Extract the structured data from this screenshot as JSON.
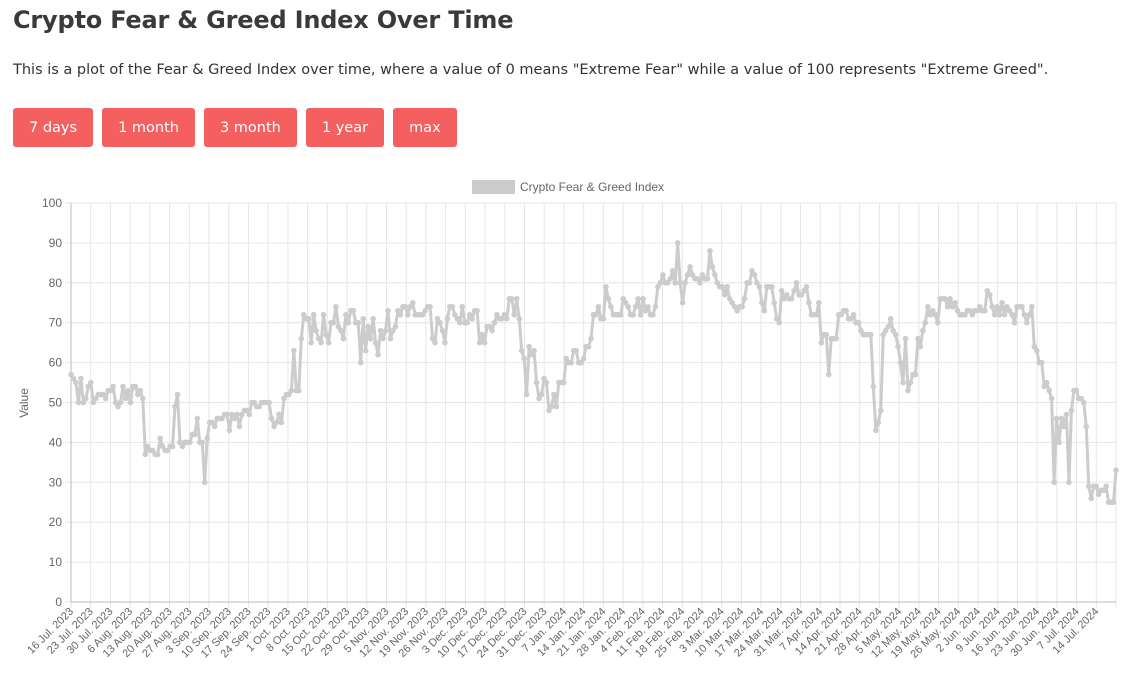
{
  "page": {
    "title": "Crypto Fear & Greed Index Over Time",
    "description": "This is a plot of the Fear & Greed Index over time, where a value of 0 means \"Extreme Fear\" while a value of 100 represents \"Extreme Greed\"."
  },
  "buttons": [
    {
      "label": "7 days"
    },
    {
      "label": "1 month"
    },
    {
      "label": "3 month"
    },
    {
      "label": "1 year"
    },
    {
      "label": "max"
    }
  ],
  "colors": {
    "button": "#f45f5f",
    "line": "#cccccc",
    "grid": "#e6e6e6",
    "axis_text": "#666666"
  },
  "chart_data": {
    "type": "line",
    "title": "",
    "xlabel": "",
    "ylabel": "Value",
    "ylim": [
      0,
      100
    ],
    "yticks": [
      0,
      10,
      20,
      30,
      40,
      50,
      60,
      70,
      80,
      90,
      100
    ],
    "grid": true,
    "legend_position": "top",
    "x_tick_labels": [
      "16 Jul. 2023",
      "23 Jul. 2023",
      "30 Jul. 2023",
      "6 Aug. 2023",
      "13 Aug. 2023",
      "20 Aug. 2023",
      "27 Aug. 2023",
      "3 Sep. 2023",
      "10 Sep. 2023",
      "17 Sep. 2023",
      "24 Sep. 2023",
      "1 Oct. 2023",
      "8 Oct. 2023",
      "15 Oct. 2023",
      "22 Oct. 2023",
      "29 Oct. 2023",
      "5 Nov. 2023",
      "12 Nov. 2023",
      "19 Nov. 2023",
      "26 Nov. 2023",
      "3 Dec. 2023",
      "10 Dec. 2023",
      "17 Dec. 2023",
      "24 Dec. 2023",
      "31 Dec. 2023",
      "7 Jan. 2024",
      "14 Jan. 2024",
      "21 Jan. 2024",
      "28 Jan. 2024",
      "4 Feb. 2024",
      "11 Feb. 2024",
      "18 Feb. 2024",
      "25 Feb. 2024",
      "3 Mar. 2024",
      "10 Mar. 2024",
      "17 Mar. 2024",
      "24 Mar. 2024",
      "31 Mar. 2024",
      "7 Apr. 2024",
      "14 Apr. 2024",
      "21 Apr. 2024",
      "28 Apr. 2024",
      "5 May. 2024",
      "12 May. 2024",
      "19 May. 2024",
      "26 May. 2024",
      "2 Jun. 2024",
      "9 Jun. 2024",
      "16 Jun. 2024",
      "23 Jun. 2024",
      "30 Jun. 2024",
      "7 Jul. 2024",
      "14 Jul. 2024"
    ],
    "series": [
      {
        "name": "Crypto Fear & Greed Index",
        "values": [
          57,
          56,
          55,
          50,
          56,
          50,
          51,
          54,
          55,
          50,
          51,
          52,
          52,
          52,
          51,
          53,
          53,
          54,
          50,
          49,
          50,
          54,
          51,
          53,
          50,
          54,
          54,
          52,
          53,
          51,
          37,
          39,
          38,
          38,
          37,
          37,
          41,
          39,
          38,
          38,
          39,
          39,
          49,
          52,
          40,
          39,
          40,
          40,
          40,
          42,
          42,
          46,
          40,
          40,
          30,
          41,
          45,
          45,
          44,
          46,
          46,
          46,
          47,
          47,
          43,
          47,
          46,
          47,
          44,
          47,
          48,
          48,
          47,
          50,
          50,
          49,
          49,
          50,
          50,
          50,
          50,
          46,
          44,
          45,
          47,
          45,
          51,
          52,
          52,
          53,
          63,
          53,
          53,
          66,
          72,
          71,
          71,
          65,
          72,
          68,
          66,
          65,
          72,
          67,
          65,
          70,
          70,
          74,
          69,
          68,
          66,
          72,
          70,
          73,
          73,
          70,
          70,
          60,
          71,
          63,
          69,
          66,
          71,
          65,
          62,
          68,
          66,
          68,
          73,
          66,
          68,
          69,
          73,
          72,
          74,
          74,
          72,
          74,
          75,
          72,
          72,
          72,
          72,
          73,
          74,
          74,
          66,
          65,
          71,
          70,
          68,
          65,
          71,
          74,
          74,
          72,
          71,
          70,
          74,
          70,
          70,
          72,
          71,
          73,
          73,
          65,
          67,
          65,
          69,
          69,
          68,
          70,
          72,
          71,
          71,
          72,
          71,
          76,
          76,
          72,
          76,
          71,
          63,
          61,
          52,
          64,
          62,
          63,
          55,
          51,
          52,
          56,
          55,
          48,
          49,
          52,
          49,
          55,
          55,
          55,
          61,
          60,
          60,
          63,
          63,
          60,
          60,
          61,
          64,
          64,
          66,
          72,
          72,
          74,
          71,
          71,
          79,
          76,
          74,
          72,
          72,
          72,
          72,
          76,
          75,
          74,
          72,
          72,
          74,
          76,
          72,
          76,
          73,
          74,
          72,
          72,
          74,
          79,
          80,
          82,
          80,
          80,
          81,
          83,
          80,
          90,
          80,
          75,
          80,
          82,
          84,
          82,
          81,
          81,
          80,
          82,
          81,
          81,
          88,
          84,
          82,
          80,
          79,
          79,
          77,
          79,
          76,
          75,
          74,
          73,
          74,
          74,
          76,
          80,
          80,
          83,
          82,
          80,
          79,
          75,
          73,
          79,
          79,
          79,
          75,
          71,
          70,
          78,
          76,
          77,
          76,
          76,
          78,
          80,
          77,
          77,
          78,
          79,
          75,
          72,
          72,
          72,
          75,
          65,
          67,
          67,
          57,
          66,
          66,
          66,
          72,
          72,
          73,
          73,
          71,
          71,
          72,
          70,
          70,
          68,
          67,
          67,
          67,
          67,
          54,
          43,
          45,
          48,
          67,
          68,
          69,
          71,
          68,
          67,
          64,
          60,
          55,
          66,
          53,
          55,
          57,
          57,
          66,
          64,
          68,
          70,
          74,
          72,
          73,
          72,
          70,
          76,
          76,
          76,
          74,
          76,
          74,
          75,
          73,
          72,
          72,
          72,
          73,
          73,
          72,
          73,
          73,
          74,
          73,
          73,
          78,
          77,
          74,
          72,
          74,
          72,
          75,
          72,
          74,
          73,
          72,
          70,
          74,
          74,
          74,
          72,
          70,
          72,
          74,
          64,
          63,
          60,
          60,
          54,
          55,
          53,
          51,
          30,
          46,
          40,
          46,
          44,
          47,
          30,
          48,
          53,
          53,
          51,
          51,
          50,
          44,
          29,
          26,
          29,
          29,
          27,
          28,
          28,
          29,
          25,
          25,
          25,
          33
        ]
      }
    ]
  }
}
